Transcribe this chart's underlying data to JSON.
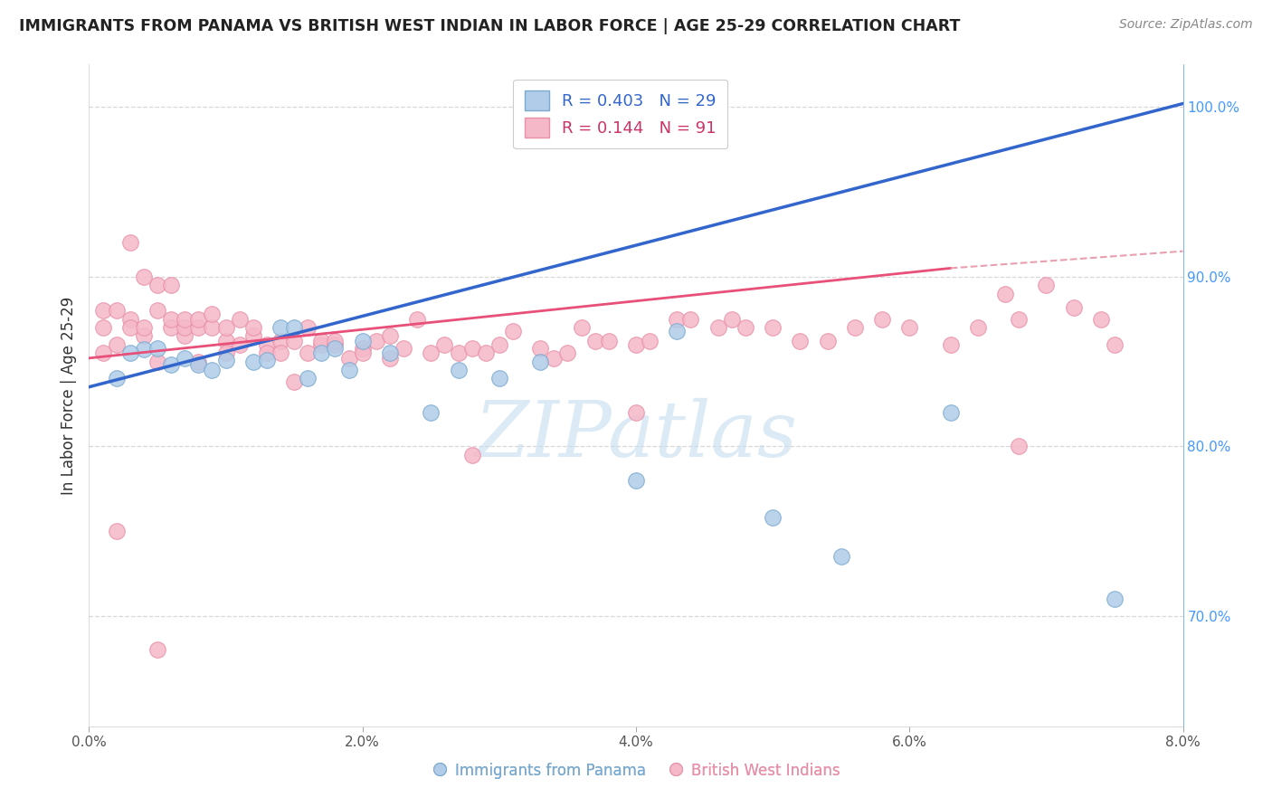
{
  "title": "IMMIGRANTS FROM PANAMA VS BRITISH WEST INDIAN IN LABOR FORCE | AGE 25-29 CORRELATION CHART",
  "source_text": "Source: ZipAtlas.com",
  "ylabel": "In Labor Force | Age 25-29",
  "xlim": [
    0.0,
    0.08
  ],
  "ylim": [
    0.635,
    1.025
  ],
  "xticks": [
    0.0,
    0.02,
    0.04,
    0.06,
    0.08
  ],
  "xtick_labels": [
    "0.0%",
    "2.0%",
    "4.0%",
    "6.0%",
    "8.0%"
  ],
  "yticks_right": [
    0.7,
    0.8,
    0.9,
    1.0
  ],
  "ytick_right_labels": [
    "70.0%",
    "80.0%",
    "90.0%",
    "100.0%"
  ],
  "R_blue": 0.403,
  "N_blue": 29,
  "R_pink": 0.144,
  "N_pink": 91,
  "blue_scatter_color": "#b0cce8",
  "blue_edge_color": "#7aaad0",
  "pink_scatter_color": "#f5b8c8",
  "pink_edge_color": "#e890a8",
  "blue_line_color": "#3366cc",
  "pink_line_color": "#e8507a",
  "pink_line_dashed_color": "#e8a0b0",
  "watermark_color": "#c8dff0",
  "watermark_text": "ZIPatlas",
  "legend_label_blue": "R = 0.403   N = 29",
  "legend_label_pink": "R = 0.144   N = 91",
  "legend_text_color_blue": "#3366cc",
  "legend_text_color_pink": "#cc3366",
  "bottom_label_blue": "Immigrants from Panama",
  "bottom_label_pink": "British West Indians",
  "grid_color": "#d8d8d8",
  "title_color": "#222222",
  "source_color": "#888888",
  "right_axis_color": "#4499ff",
  "scatter_size": 160,
  "blue_x": [
    0.002,
    0.004,
    0.005,
    0.006,
    0.007,
    0.008,
    0.009,
    0.01,
    0.012,
    0.013,
    0.014,
    0.015,
    0.016,
    0.017,
    0.018,
    0.019,
    0.02,
    0.022,
    0.025,
    0.027,
    0.03,
    0.033,
    0.04,
    0.043,
    0.05,
    0.055,
    0.063,
    0.075,
    0.003
  ],
  "blue_y": [
    0.84,
    0.857,
    0.858,
    0.848,
    0.852,
    0.848,
    0.845,
    0.851,
    0.85,
    0.851,
    0.87,
    0.87,
    0.84,
    0.855,
    0.858,
    0.845,
    0.862,
    0.855,
    0.82,
    0.845,
    0.84,
    0.85,
    0.78,
    0.868,
    0.758,
    0.735,
    0.82,
    0.71,
    0.855
  ],
  "pink_x": [
    0.001,
    0.001,
    0.001,
    0.002,
    0.002,
    0.003,
    0.003,
    0.003,
    0.004,
    0.004,
    0.004,
    0.005,
    0.005,
    0.005,
    0.006,
    0.006,
    0.006,
    0.007,
    0.007,
    0.007,
    0.008,
    0.008,
    0.008,
    0.009,
    0.009,
    0.01,
    0.01,
    0.01,
    0.011,
    0.011,
    0.012,
    0.012,
    0.013,
    0.013,
    0.014,
    0.014,
    0.015,
    0.015,
    0.016,
    0.016,
    0.017,
    0.017,
    0.018,
    0.018,
    0.019,
    0.02,
    0.02,
    0.021,
    0.022,
    0.022,
    0.023,
    0.024,
    0.025,
    0.026,
    0.027,
    0.028,
    0.029,
    0.03,
    0.031,
    0.033,
    0.034,
    0.035,
    0.036,
    0.037,
    0.038,
    0.04,
    0.041,
    0.043,
    0.044,
    0.046,
    0.047,
    0.048,
    0.05,
    0.052,
    0.054,
    0.056,
    0.058,
    0.06,
    0.063,
    0.065,
    0.067,
    0.068,
    0.07,
    0.072,
    0.074,
    0.075,
    0.002,
    0.005,
    0.028,
    0.04,
    0.068
  ],
  "pink_y": [
    0.87,
    0.88,
    0.855,
    0.86,
    0.88,
    0.875,
    0.87,
    0.92,
    0.865,
    0.87,
    0.9,
    0.85,
    0.88,
    0.895,
    0.87,
    0.875,
    0.895,
    0.865,
    0.87,
    0.875,
    0.87,
    0.875,
    0.85,
    0.87,
    0.878,
    0.862,
    0.87,
    0.855,
    0.875,
    0.86,
    0.865,
    0.87,
    0.86,
    0.855,
    0.862,
    0.855,
    0.862,
    0.838,
    0.855,
    0.87,
    0.86,
    0.862,
    0.86,
    0.862,
    0.852,
    0.858,
    0.855,
    0.862,
    0.865,
    0.852,
    0.858,
    0.875,
    0.855,
    0.86,
    0.855,
    0.858,
    0.855,
    0.86,
    0.868,
    0.858,
    0.852,
    0.855,
    0.87,
    0.862,
    0.862,
    0.86,
    0.862,
    0.875,
    0.875,
    0.87,
    0.875,
    0.87,
    0.87,
    0.862,
    0.862,
    0.87,
    0.875,
    0.87,
    0.86,
    0.87,
    0.89,
    0.875,
    0.895,
    0.882,
    0.875,
    0.86,
    0.75,
    0.68,
    0.795,
    0.82,
    0.8
  ]
}
